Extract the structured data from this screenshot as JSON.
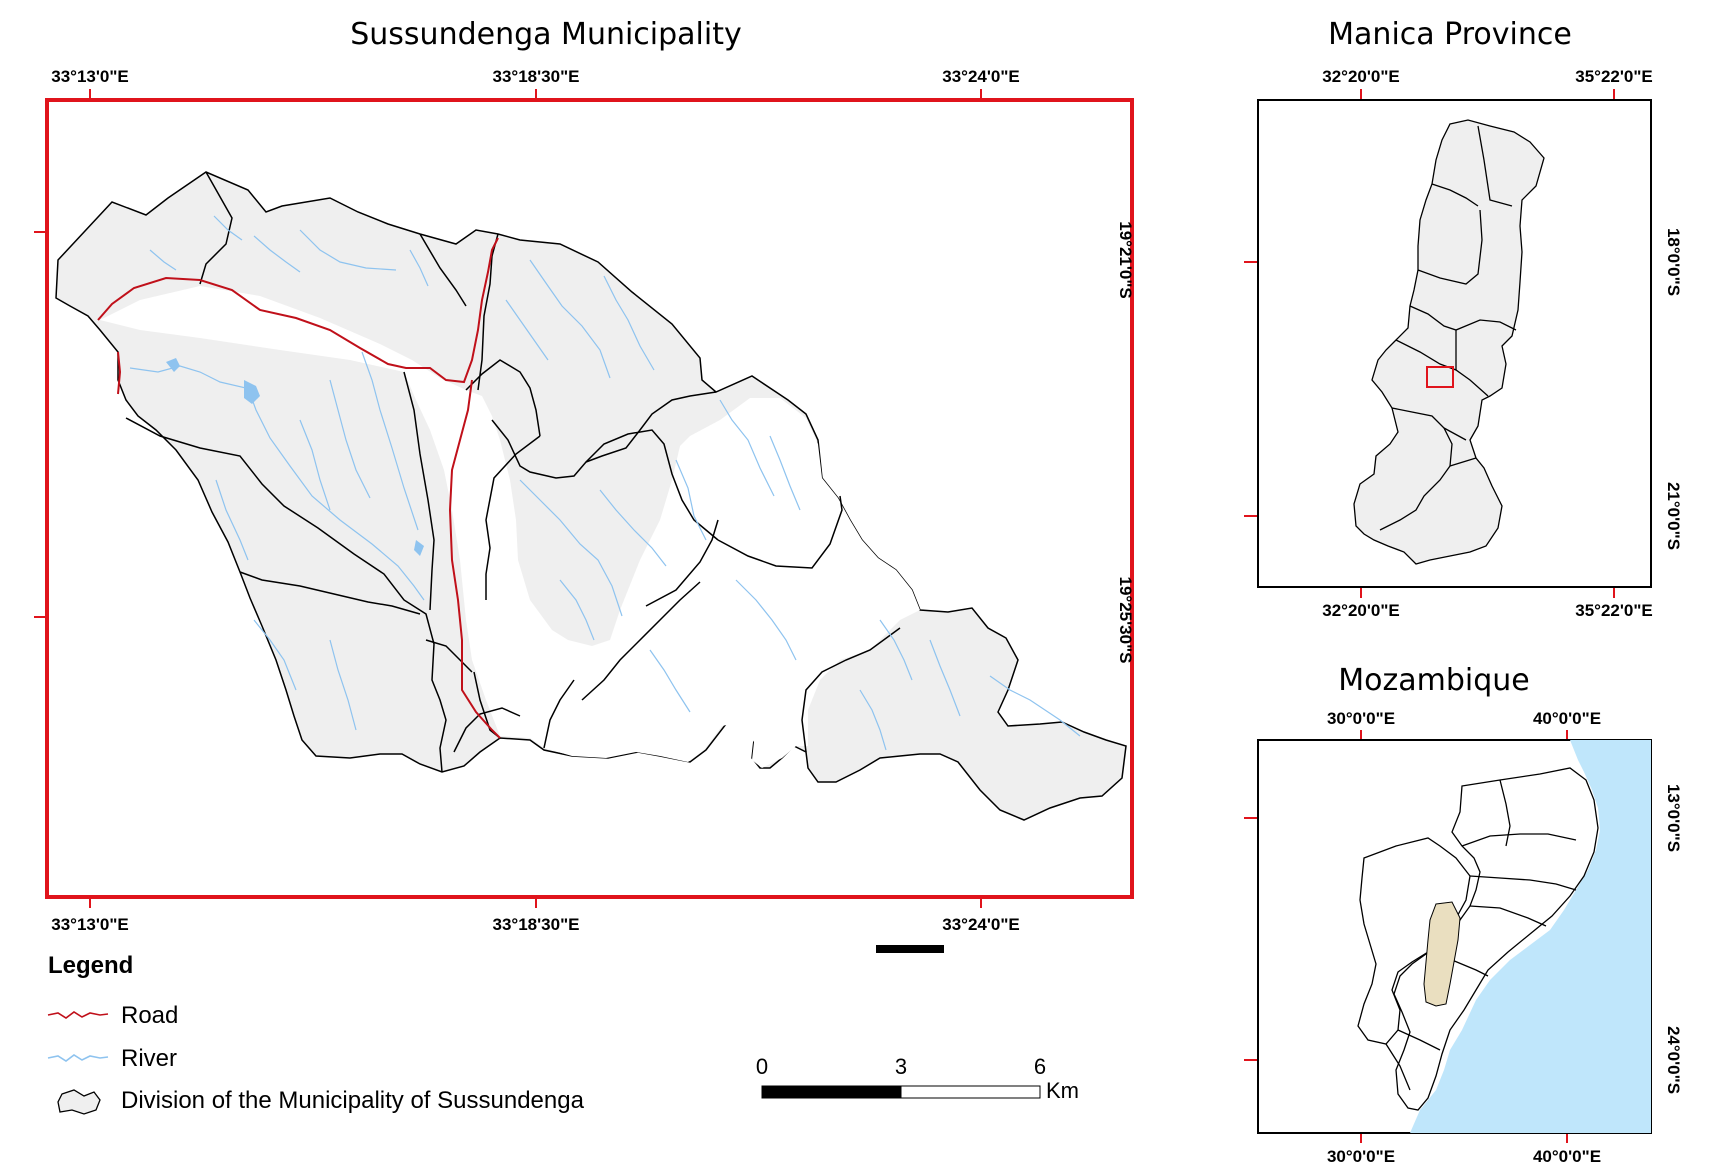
{
  "main_map": {
    "title": "Sussundenga Municipality",
    "top_lon_labels": [
      "33°13'0\"E",
      "33°18'30\"E",
      "33°24'0\"E"
    ],
    "bottom_lon_labels": [
      "33°13'0\"E",
      "33°18'30\"E",
      "33°24'0\"E"
    ],
    "right_lat_labels": [
      "19°21'0\"S",
      "19°25'30\"S"
    ]
  },
  "province_map": {
    "title": "Manica Province",
    "top_lon_labels": [
      "32°20'0\"E",
      "35°22'0\"E"
    ],
    "bottom_lon_labels": [
      "32°20'0\"E",
      "35°22'0\"E"
    ],
    "right_lat_labels": [
      "18°0'0\"S",
      "21°0'0\"S"
    ]
  },
  "country_map": {
    "title": "Mozambique",
    "top_lon_labels": [
      "30°0'0\"E",
      "40°0'0\"E"
    ],
    "bottom_lon_labels": [
      "30°0'0\"E",
      "40°0'0\"E"
    ],
    "right_lat_labels": [
      "13°0'0\"S",
      "24°0'0\"S"
    ]
  },
  "legend": {
    "title": "Legend",
    "items": [
      {
        "label": "Road",
        "symbol": "road-line",
        "color": "#c0101a"
      },
      {
        "label": "River",
        "symbol": "river-line",
        "color": "#8ec3ef"
      },
      {
        "label": "Division of the Municipality of Sussundenga",
        "symbol": "polygon",
        "color": "#efefef"
      }
    ]
  },
  "scale_bar": {
    "ticks": [
      "0",
      "3",
      "6"
    ],
    "unit": "Km"
  },
  "colors": {
    "frame_red": "#e0141c",
    "land_gray": "#efefef",
    "river_blue": "#8ec3ef",
    "ocean_blue": "#bfe6fb",
    "manica_highlight": "#eadfc0",
    "road_red": "#c0101a"
  }
}
